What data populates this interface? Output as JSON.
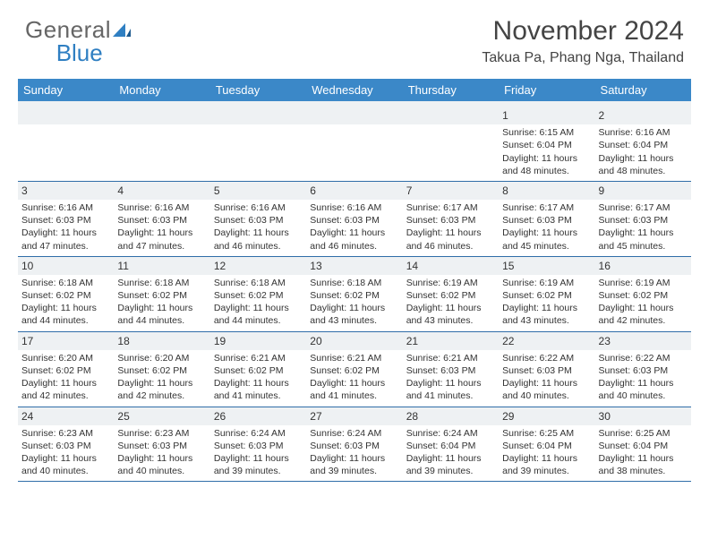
{
  "logo": {
    "text_general": "General",
    "text_blue": "Blue"
  },
  "title": "November 2024",
  "location": "Takua Pa, Phang Nga, Thailand",
  "colors": {
    "header_bg": "#3b88c8",
    "header_text": "#ffffff",
    "daynum_bg": "#eef1f3",
    "border": "#2f6da8",
    "logo_blue": "#2f7fc2",
    "logo_gray": "#666666"
  },
  "weekdays": [
    "Sunday",
    "Monday",
    "Tuesday",
    "Wednesday",
    "Thursday",
    "Friday",
    "Saturday"
  ],
  "weeks": [
    [
      null,
      null,
      null,
      null,
      null,
      {
        "num": "1",
        "sunrise": "6:15 AM",
        "sunset": "6:04 PM",
        "daylight": "11 hours and 48 minutes."
      },
      {
        "num": "2",
        "sunrise": "6:16 AM",
        "sunset": "6:04 PM",
        "daylight": "11 hours and 48 minutes."
      }
    ],
    [
      {
        "num": "3",
        "sunrise": "6:16 AM",
        "sunset": "6:03 PM",
        "daylight": "11 hours and 47 minutes."
      },
      {
        "num": "4",
        "sunrise": "6:16 AM",
        "sunset": "6:03 PM",
        "daylight": "11 hours and 47 minutes."
      },
      {
        "num": "5",
        "sunrise": "6:16 AM",
        "sunset": "6:03 PM",
        "daylight": "11 hours and 46 minutes."
      },
      {
        "num": "6",
        "sunrise": "6:16 AM",
        "sunset": "6:03 PM",
        "daylight": "11 hours and 46 minutes."
      },
      {
        "num": "7",
        "sunrise": "6:17 AM",
        "sunset": "6:03 PM",
        "daylight": "11 hours and 46 minutes."
      },
      {
        "num": "8",
        "sunrise": "6:17 AM",
        "sunset": "6:03 PM",
        "daylight": "11 hours and 45 minutes."
      },
      {
        "num": "9",
        "sunrise": "6:17 AM",
        "sunset": "6:03 PM",
        "daylight": "11 hours and 45 minutes."
      }
    ],
    [
      {
        "num": "10",
        "sunrise": "6:18 AM",
        "sunset": "6:02 PM",
        "daylight": "11 hours and 44 minutes."
      },
      {
        "num": "11",
        "sunrise": "6:18 AM",
        "sunset": "6:02 PM",
        "daylight": "11 hours and 44 minutes."
      },
      {
        "num": "12",
        "sunrise": "6:18 AM",
        "sunset": "6:02 PM",
        "daylight": "11 hours and 44 minutes."
      },
      {
        "num": "13",
        "sunrise": "6:18 AM",
        "sunset": "6:02 PM",
        "daylight": "11 hours and 43 minutes."
      },
      {
        "num": "14",
        "sunrise": "6:19 AM",
        "sunset": "6:02 PM",
        "daylight": "11 hours and 43 minutes."
      },
      {
        "num": "15",
        "sunrise": "6:19 AM",
        "sunset": "6:02 PM",
        "daylight": "11 hours and 43 minutes."
      },
      {
        "num": "16",
        "sunrise": "6:19 AM",
        "sunset": "6:02 PM",
        "daylight": "11 hours and 42 minutes."
      }
    ],
    [
      {
        "num": "17",
        "sunrise": "6:20 AM",
        "sunset": "6:02 PM",
        "daylight": "11 hours and 42 minutes."
      },
      {
        "num": "18",
        "sunrise": "6:20 AM",
        "sunset": "6:02 PM",
        "daylight": "11 hours and 42 minutes."
      },
      {
        "num": "19",
        "sunrise": "6:21 AM",
        "sunset": "6:02 PM",
        "daylight": "11 hours and 41 minutes."
      },
      {
        "num": "20",
        "sunrise": "6:21 AM",
        "sunset": "6:02 PM",
        "daylight": "11 hours and 41 minutes."
      },
      {
        "num": "21",
        "sunrise": "6:21 AM",
        "sunset": "6:03 PM",
        "daylight": "11 hours and 41 minutes."
      },
      {
        "num": "22",
        "sunrise": "6:22 AM",
        "sunset": "6:03 PM",
        "daylight": "11 hours and 40 minutes."
      },
      {
        "num": "23",
        "sunrise": "6:22 AM",
        "sunset": "6:03 PM",
        "daylight": "11 hours and 40 minutes."
      }
    ],
    [
      {
        "num": "24",
        "sunrise": "6:23 AM",
        "sunset": "6:03 PM",
        "daylight": "11 hours and 40 minutes."
      },
      {
        "num": "25",
        "sunrise": "6:23 AM",
        "sunset": "6:03 PM",
        "daylight": "11 hours and 40 minutes."
      },
      {
        "num": "26",
        "sunrise": "6:24 AM",
        "sunset": "6:03 PM",
        "daylight": "11 hours and 39 minutes."
      },
      {
        "num": "27",
        "sunrise": "6:24 AM",
        "sunset": "6:03 PM",
        "daylight": "11 hours and 39 minutes."
      },
      {
        "num": "28",
        "sunrise": "6:24 AM",
        "sunset": "6:04 PM",
        "daylight": "11 hours and 39 minutes."
      },
      {
        "num": "29",
        "sunrise": "6:25 AM",
        "sunset": "6:04 PM",
        "daylight": "11 hours and 39 minutes."
      },
      {
        "num": "30",
        "sunrise": "6:25 AM",
        "sunset": "6:04 PM",
        "daylight": "11 hours and 38 minutes."
      }
    ]
  ],
  "labels": {
    "sunrise_prefix": "Sunrise: ",
    "sunset_prefix": "Sunset: ",
    "daylight_prefix": "Daylight: "
  }
}
